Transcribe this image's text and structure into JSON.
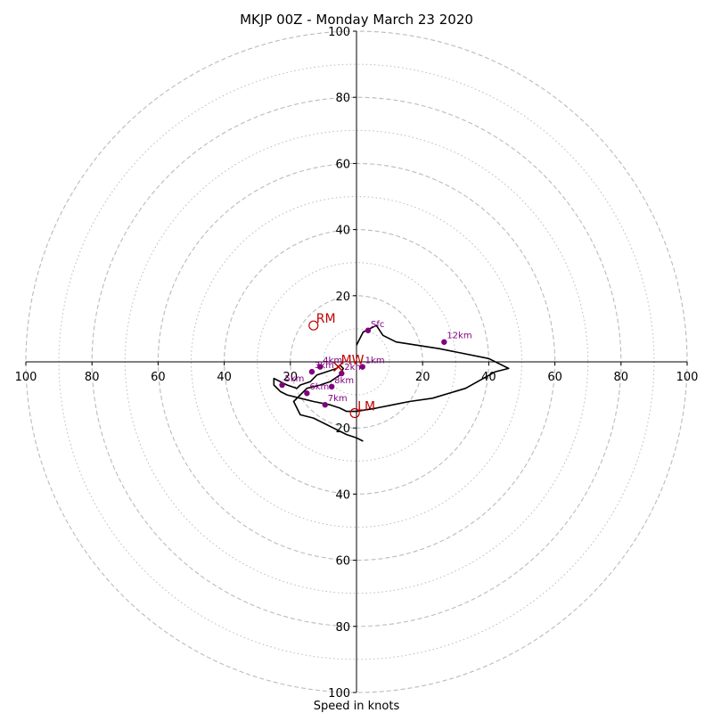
{
  "chart_data": {
    "type": "scatter",
    "subtype": "hodograph",
    "title": "MKJP 00Z - Monday March 23 2020",
    "xlabel": "Speed in knots",
    "ylabel": "",
    "xlim": [
      -100,
      100
    ],
    "ylim": [
      -100,
      100
    ],
    "rings": {
      "major_dashed": [
        20,
        40,
        60,
        80,
        100
      ],
      "minor_dotted": [
        10,
        30,
        50,
        70,
        90
      ]
    },
    "x_tick_labels": [
      "100",
      "80",
      "60",
      "40",
      "20",
      "20",
      "40",
      "60",
      "80",
      "100"
    ],
    "y_tick_labels": [
      "100",
      "80",
      "60",
      "40",
      "20",
      "20",
      "40",
      "60",
      "80",
      "100"
    ],
    "x_ticks": [
      -100,
      -80,
      -60,
      -40,
      -20,
      20,
      40,
      60,
      80,
      100
    ],
    "y_ticks": [
      100,
      80,
      60,
      40,
      20,
      -20,
      -40,
      -60,
      -80,
      -100
    ],
    "trace": {
      "color": "#000000",
      "u": [
        0,
        2,
        4,
        6,
        8,
        12,
        25,
        30,
        40,
        46,
        42,
        33,
        23,
        16,
        11,
        6,
        0,
        -3,
        -5,
        -8,
        -13,
        -17,
        -21,
        -23,
        -25,
        -25,
        -23,
        -21,
        -18,
        -17,
        -14,
        -12,
        -9,
        -6,
        -5,
        -4,
        -5,
        -8,
        -11,
        -15,
        -19,
        -17,
        -13,
        -11,
        -9,
        -7,
        -5,
        -3,
        0,
        2
      ],
      "v": [
        5,
        9,
        10,
        11,
        8,
        6,
        4,
        3,
        1,
        -2,
        -3,
        -8,
        -11,
        -12,
        -13,
        -14,
        -15,
        -15,
        -14,
        -13,
        -12,
        -11,
        -10,
        -9,
        -7,
        -5,
        -6,
        -7,
        -8,
        -7,
        -6,
        -4,
        -3,
        -2,
        -1,
        -2,
        -4,
        -6,
        -7,
        -8,
        -12,
        -16,
        -17,
        -18,
        -19,
        -20,
        -21,
        -22,
        -23,
        -24
      ]
    },
    "heights": [
      {
        "label": "Sfc",
        "u": 3.5,
        "v": 9.5
      },
      {
        "label": "1km",
        "u": 1.8,
        "v": -1.5
      },
      {
        "label": "2km",
        "u": -4.5,
        "v": -3.5
      },
      {
        "label": "3km",
        "u": -13.5,
        "v": -3
      },
      {
        "label": "4km",
        "u": -11,
        "v": -1.5
      },
      {
        "label": "5km",
        "u": -22.5,
        "v": -7
      },
      {
        "label": "6km",
        "u": -15,
        "v": -9.5
      },
      {
        "label": "7km",
        "u": -9.5,
        "v": -13
      },
      {
        "label": "8km",
        "u": -7.5,
        "v": -7.5
      },
      {
        "label": "12km",
        "u": 26.5,
        "v": 6
      }
    ],
    "motions": [
      {
        "label": "RM",
        "u": -13,
        "v": 11
      },
      {
        "label": "LM",
        "u": -0.5,
        "v": -15.5
      },
      {
        "label": "MW",
        "u": -5.5,
        "v": -1.5
      }
    ],
    "colors": {
      "trace": "#000000",
      "height_markers": "#800080",
      "storm_motion": "#c00000",
      "grid": "#bbbbbb"
    }
  }
}
